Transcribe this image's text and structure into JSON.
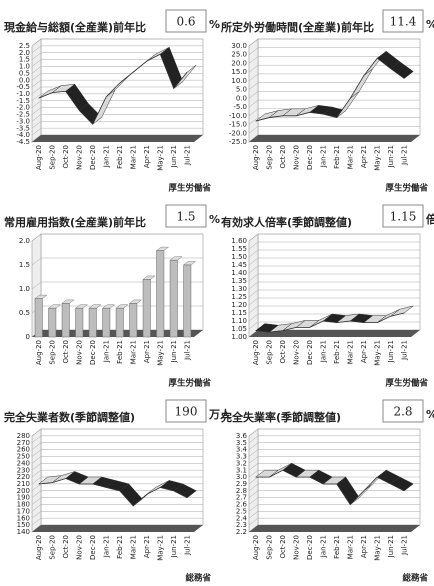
{
  "chart_data": [
    {
      "type": "line",
      "title": "現金給与総額(全産業)前年比",
      "latest_value": 0.6,
      "unit": "%",
      "source": "厚生労働省",
      "color": "#d9d9d9",
      "categories": [
        "Aug-20",
        "Sep-20",
        "Oct-20",
        "Nov-20",
        "Dec-20",
        "Jan-21",
        "Feb-21",
        "Mar-21",
        "Apr-21",
        "May-21",
        "Jun-21",
        "Jul-21"
      ],
      "values": [
        -1.3,
        -0.9,
        -0.8,
        -2.2,
        -3.2,
        -1.2,
        -0.2,
        0.6,
        1.4,
        1.9,
        -0.6,
        0.6
      ],
      "ylim": [
        -4.5,
        2.5
      ],
      "yticks": [
        -4.5,
        {
          "value": -4,
          "label": "-4.0"
        },
        -3.5,
        {
          "value": -3,
          "label": "-3.0"
        },
        -2.5,
        {
          "value": -2,
          "label": "-2.0"
        },
        -1.5,
        {
          "value": -1,
          "label": "-1.0"
        },
        -0.5,
        {
          "value": 0,
          "label": "0.0"
        },
        0.5,
        {
          "value": 1,
          "label": "1.0"
        },
        1.5,
        {
          "value": 2,
          "label": "2.0"
        },
        2.5
      ]
    },
    {
      "type": "line",
      "title": "所定外労働時間(全産業)前年比",
      "latest_value": 11.4,
      "unit": "%",
      "source": "厚生労働省",
      "color": "#d9d9d9",
      "categories": [
        "Aug-20",
        "Sep-20",
        "Oct-20",
        "Nov-20",
        "Dec-20",
        "Jan-21",
        "Feb-21",
        "Mar-21",
        "Apr-21",
        "May-21",
        "Jun-21",
        "Jul-21"
      ],
      "values": [
        -13,
        -11,
        -10,
        -10,
        -8,
        -9,
        -11,
        0,
        13,
        23,
        17,
        11.4
      ],
      "ylim": [
        -25,
        30
      ],
      "yticks": [
        {
          "value": -25,
          "label": "-25.0"
        },
        {
          "value": -20,
          "label": "-20.0"
        },
        {
          "value": -15,
          "label": "-15.0"
        },
        {
          "value": -10,
          "label": "-10.0"
        },
        {
          "value": -5,
          "label": "-5.0"
        },
        {
          "value": 0,
          "label": "0.0"
        },
        {
          "value": 5,
          "label": "5.0"
        },
        {
          "value": 10,
          "label": "10.0"
        },
        {
          "value": 15,
          "label": "15.0"
        },
        {
          "value": 20,
          "label": "20.0"
        },
        {
          "value": 25,
          "label": "25.0"
        },
        {
          "value": 30,
          "label": "30.0"
        }
      ]
    },
    {
      "type": "bar",
      "title": "常用雇用指数(全産業)前年比",
      "latest_value": 1.5,
      "unit": "%",
      "source": "厚生労働省",
      "color": "#bdbdbd",
      "categories": [
        "Aug-20",
        "Sep-20",
        "Oct-20",
        "Nov-20",
        "Dec-20",
        "Jan-21",
        "Feb-21",
        "Mar-21",
        "Apr-21",
        "May-21",
        "Jun-21",
        "Jul-21"
      ],
      "values": [
        0.8,
        0.6,
        0.7,
        0.6,
        0.6,
        0.6,
        0.6,
        0.7,
        1.2,
        1.8,
        1.6,
        1.5
      ],
      "ylim": [
        0,
        2
      ],
      "yticks": [
        0,
        0.5,
        {
          "value": 1,
          "label": "1.0"
        },
        1.5,
        {
          "value": 2,
          "label": "2.0"
        }
      ]
    },
    {
      "type": "line",
      "title": "有効求人倍率(季節調整値)",
      "latest_value": 1.15,
      "unit": "倍",
      "source": "厚生労働省",
      "color": "#d9d9d9",
      "categories": [
        "Aug-20",
        "Sep-20",
        "Oct-20",
        "Nov-20",
        "Dec-20",
        "Jan-21",
        "Feb-21",
        "Mar-21",
        "Apr-21",
        "May-21",
        "Jun-21",
        "Jul-21"
      ],
      "values": [
        1.04,
        1.03,
        1.04,
        1.06,
        1.06,
        1.1,
        1.09,
        1.1,
        1.09,
        1.09,
        1.13,
        1.15
      ],
      "ylim": [
        1,
        1.6
      ],
      "yticks": [
        {
          "value": 1,
          "label": "1.00"
        },
        1.05,
        {
          "value": 1.1,
          "label": "1.10"
        },
        1.15,
        {
          "value": 1.2,
          "label": "1.20"
        },
        1.25,
        {
          "value": 1.3,
          "label": "1.30"
        },
        1.35,
        {
          "value": 1.4,
          "label": "1.40"
        },
        1.45,
        {
          "value": 1.5,
          "label": "1.50"
        },
        1.55,
        {
          "value": 1.6,
          "label": "1.60"
        }
      ]
    },
    {
      "type": "line",
      "title": "完全失業者数(季節調整値)",
      "latest_value": 190,
      "unit": "万人",
      "source": "総務省",
      "color": "#d9d9d9",
      "categories": [
        "Aug-20",
        "Sep-20",
        "Oct-20",
        "Nov-20",
        "Dec-20",
        "Jan-21",
        "Feb-21",
        "Mar-21",
        "Apr-21",
        "May-21",
        "Jun-21",
        "Jul-21"
      ],
      "values": [
        210,
        212,
        218,
        210,
        210,
        205,
        200,
        178,
        195,
        205,
        200,
        190
      ],
      "ylim": [
        140,
        280
      ],
      "yticks": [
        140,
        150,
        160,
        170,
        180,
        190,
        200,
        210,
        220,
        230,
        240,
        250,
        260,
        270,
        280
      ]
    },
    {
      "type": "line",
      "title": "完全失業率(季節調整値)",
      "latest_value": 2.8,
      "unit": "%",
      "source": "総務省",
      "color": "#d9d9d9",
      "categories": [
        "Aug-20",
        "Sep-20",
        "Oct-20",
        "Nov-20",
        "Dec-20",
        "Jan-21",
        "Feb-21",
        "Mar-21",
        "Apr-21",
        "May-21",
        "Jun-21",
        "Jul-21"
      ],
      "values": [
        3,
        3,
        3.1,
        3,
        3,
        2.9,
        2.9,
        2.6,
        2.8,
        3,
        2.9,
        2.8
      ],
      "ylim": [
        2.2,
        3.6
      ],
      "yticks": [
        2.2,
        2.3,
        2.4,
        2.5,
        2.6,
        2.7,
        2.8,
        2.9,
        {
          "value": 3,
          "label": "3.0"
        },
        3.1,
        3.2,
        3.3,
        3.4,
        3.5,
        3.6
      ]
    }
  ]
}
